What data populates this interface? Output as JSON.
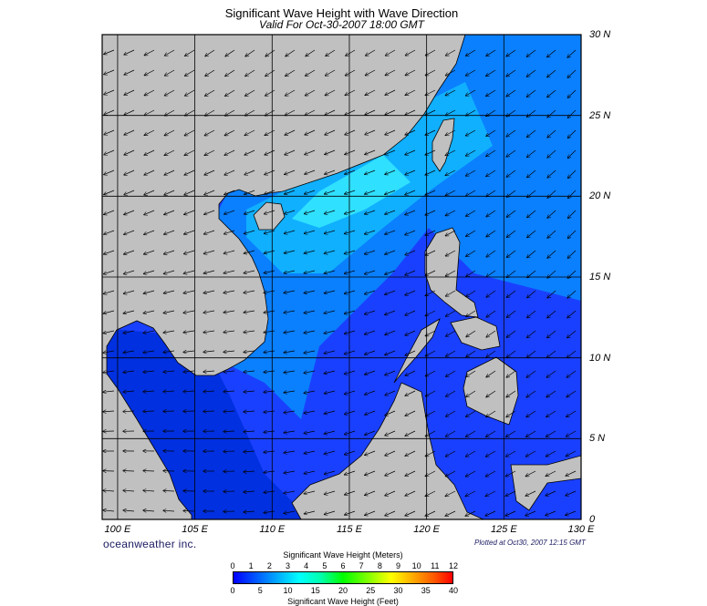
{
  "header": {
    "title": "Significant Wave Height with Wave Direction",
    "subtitle": "Valid For Oct-30-2007 18:00 GMT"
  },
  "map": {
    "lon_range": [
      99,
      130
    ],
    "lat_range": [
      0,
      30
    ],
    "lat_labels": [
      "30 N",
      "25 N",
      "20 N",
      "15 N",
      "10 N",
      "5 N",
      "0"
    ],
    "lon_labels": [
      "100 E",
      "105 E",
      "110 E",
      "115 E",
      "120 E",
      "125 E",
      "130 E"
    ],
    "land_color": "#c0c0c0",
    "sea_color": "#1a40ff"
  },
  "footer": {
    "brand": "oceanweather inc.",
    "plotted": "Plotted at Oct30, 2007 12:15 GMT"
  },
  "legend": {
    "meters_title": "Significant Wave Height (Meters)",
    "feet_title": "Significant Wave Height (Feet)",
    "meters_ticks": [
      "0",
      "1",
      "2",
      "3",
      "4",
      "5",
      "6",
      "7",
      "8",
      "9",
      "10",
      "11",
      "12"
    ],
    "feet_ticks": [
      "0",
      "5",
      "10",
      "15",
      "20",
      "25",
      "30",
      "35",
      "40"
    ]
  }
}
